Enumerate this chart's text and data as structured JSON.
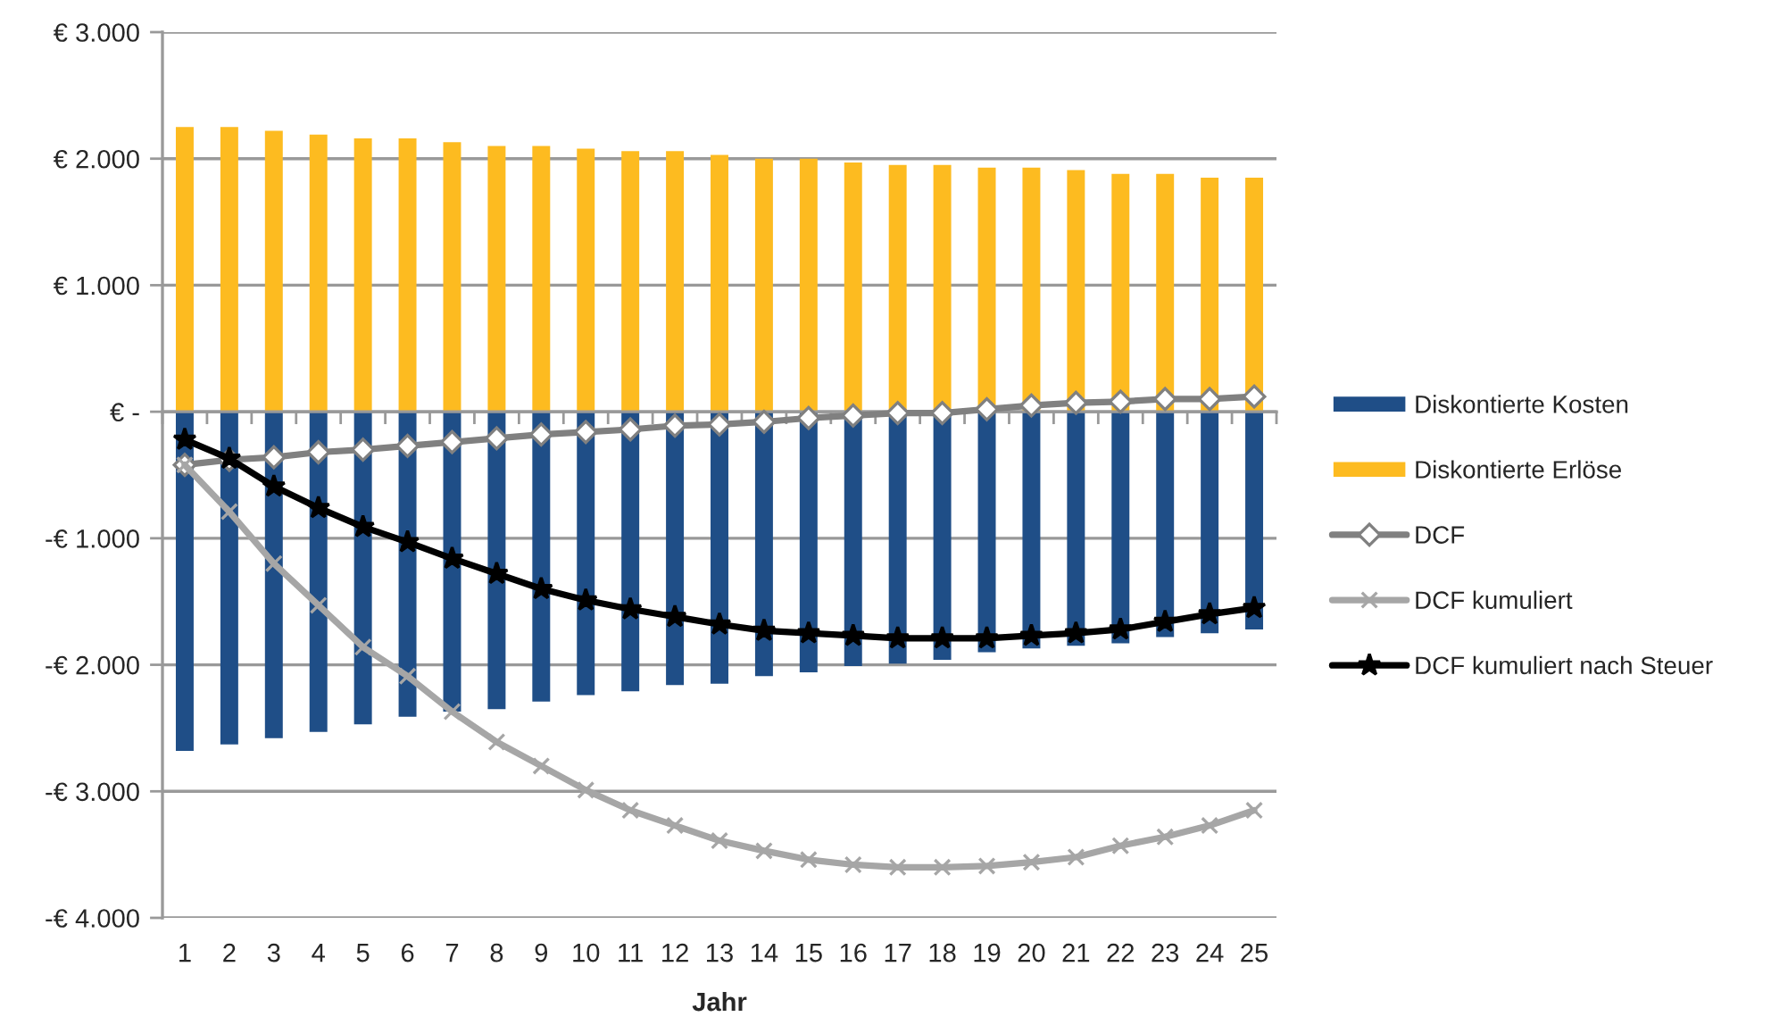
{
  "chart_data": {
    "type": "bar",
    "xlabel": "Jahr",
    "categories": [
      "1",
      "2",
      "3",
      "4",
      "5",
      "6",
      "7",
      "8",
      "9",
      "10",
      "11",
      "12",
      "13",
      "14",
      "15",
      "16",
      "17",
      "18",
      "19",
      "20",
      "21",
      "22",
      "23",
      "24",
      "25"
    ],
    "series": [
      {
        "name": "Diskontierte Kosten",
        "color": "#1f4e87",
        "values": [
          -2680,
          -2630,
          -2580,
          -2530,
          -2470,
          -2410,
          -2370,
          -2350,
          -2290,
          -2240,
          -2210,
          -2160,
          -2150,
          -2090,
          -2060,
          -2010,
          -1990,
          -1960,
          -1900,
          -1870,
          -1850,
          -1830,
          -1780,
          -1750,
          -1720
        ]
      },
      {
        "name": "Diskontierte Erlöse",
        "color": "#fdbb20",
        "values": [
          2250,
          2250,
          2220,
          2190,
          2160,
          2160,
          2130,
          2100,
          2100,
          2080,
          2060,
          2060,
          2030,
          2000,
          2000,
          1970,
          1950,
          1950,
          1930,
          1930,
          1910,
          1880,
          1880,
          1850,
          1850
        ]
      },
      {
        "name": "DCF",
        "type": "line",
        "color": "#808080",
        "marker": "diamond",
        "values": [
          -420,
          -380,
          -360,
          -320,
          -300,
          -270,
          -240,
          -210,
          -180,
          -160,
          -140,
          -110,
          -100,
          -80,
          -50,
          -30,
          -10,
          -10,
          20,
          50,
          70,
          80,
          100,
          100,
          120
        ]
      },
      {
        "name": "DCF kumuliert",
        "type": "line",
        "color": "#a6a6a6",
        "marker": "cross",
        "values": [
          -420,
          -790,
          -1200,
          -1530,
          -1860,
          -2090,
          -2370,
          -2610,
          -2800,
          -2990,
          -3150,
          -3270,
          -3390,
          -3470,
          -3540,
          -3580,
          -3600,
          -3600,
          -3590,
          -3560,
          -3520,
          -3430,
          -3360,
          -3270,
          -3150
        ]
      },
      {
        "name": "DCF kumuliert nach Steuer",
        "type": "line",
        "color": "#000000",
        "marker": "star",
        "values": [
          -220,
          -370,
          -590,
          -760,
          -910,
          -1030,
          -1160,
          -1280,
          -1400,
          -1490,
          -1560,
          -1620,
          -1680,
          -1730,
          -1750,
          -1770,
          -1790,
          -1790,
          -1790,
          -1770,
          -1750,
          -1720,
          -1660,
          -1600,
          -1550
        ]
      }
    ],
    "stacked": true,
    "ylim": [
      -4000,
      3000
    ],
    "yticks": [
      {
        "value": -4000,
        "label": "-€ 4.000"
      },
      {
        "value": -3000,
        "label": "-€ 3.000"
      },
      {
        "value": -2000,
        "label": "-€ 2.000"
      },
      {
        "value": -1000,
        "label": "-€ 1.000"
      },
      {
        "value": 0,
        "label": "€ -"
      },
      {
        "value": 1000,
        "label": "€ 1.000"
      },
      {
        "value": 2000,
        "label": "€ 2.000"
      },
      {
        "value": 3000,
        "label": "€ 3.000"
      }
    ],
    "grid": "y",
    "legend": "right"
  }
}
